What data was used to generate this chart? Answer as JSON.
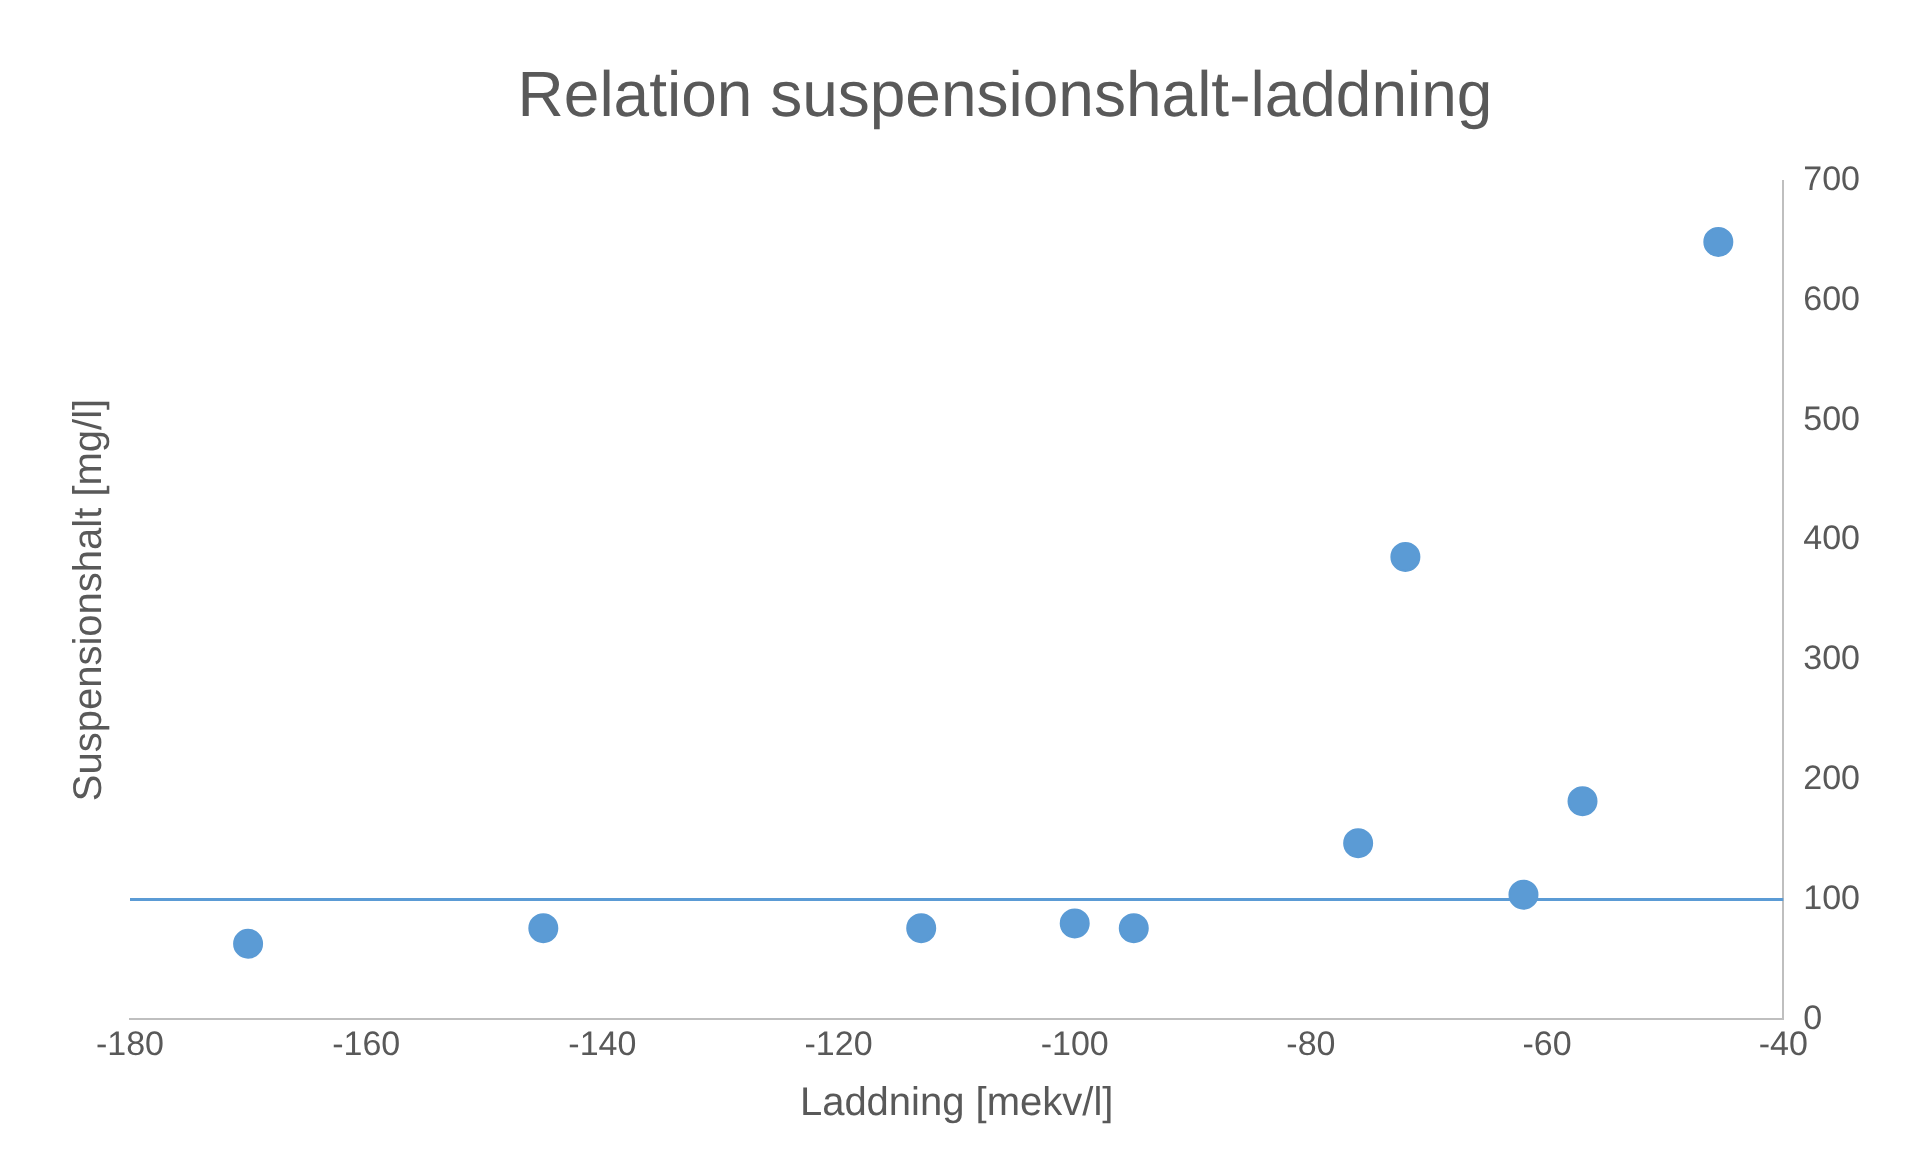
{
  "chart_data": {
    "type": "scatter",
    "title": "Relation suspensionshalt-laddning",
    "xlabel": "Laddning [mekv/l]",
    "ylabel": "Suspensionshalt [mg/l]",
    "series": [
      {
        "color": "#5b9bd5",
        "x": [
          -170,
          -145,
          -113,
          -100,
          -95,
          -76,
          -72,
          -62,
          -57,
          -45.5
        ],
        "values": [
          63,
          76,
          76,
          80,
          76,
          147,
          386,
          104,
          182,
          649
        ]
      }
    ],
    "xlim": [
      -180,
      -40
    ],
    "xticks": [
      -180,
      -160,
      -140,
      -120,
      -100,
      -80,
      -60,
      -40
    ],
    "ylim": [
      0,
      700
    ],
    "yticks": [
      0,
      100,
      200,
      300,
      400,
      500,
      600,
      700
    ],
    "ref_lines": [
      {
        "axis": "y",
        "value": 100,
        "color": "#5b9bd5"
      }
    ],
    "grid": false,
    "legend": false,
    "marker": "circle"
  }
}
